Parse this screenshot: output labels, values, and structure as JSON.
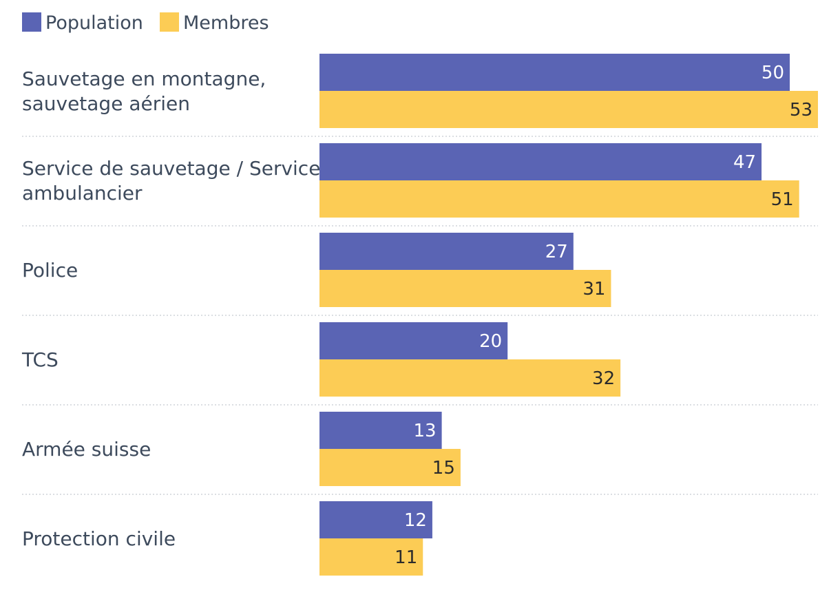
{
  "chart_data": {
    "type": "bar",
    "orientation": "horizontal",
    "title": "",
    "xlabel": "",
    "ylabel": "",
    "xlim": [
      0,
      53
    ],
    "grid": false,
    "legend_position": "top-left",
    "categories": [
      [
        "Sauvetage en montagne,",
        "sauvetage aérien"
      ],
      [
        "Service de sauvetage / Service",
        "ambulancier"
      ],
      [
        "Police"
      ],
      [
        "TCS"
      ],
      [
        "Armée suisse"
      ],
      [
        "Protection civile"
      ]
    ],
    "series": [
      {
        "name": "Population",
        "color": "#5a64b4",
        "label_color": "#ffffff",
        "values": [
          50,
          47,
          27,
          20,
          13,
          12
        ]
      },
      {
        "name": "Membres",
        "color": "#fccc55",
        "label_color": "#2b2b2b",
        "values": [
          53,
          51,
          31,
          32,
          15,
          11
        ]
      }
    ]
  }
}
